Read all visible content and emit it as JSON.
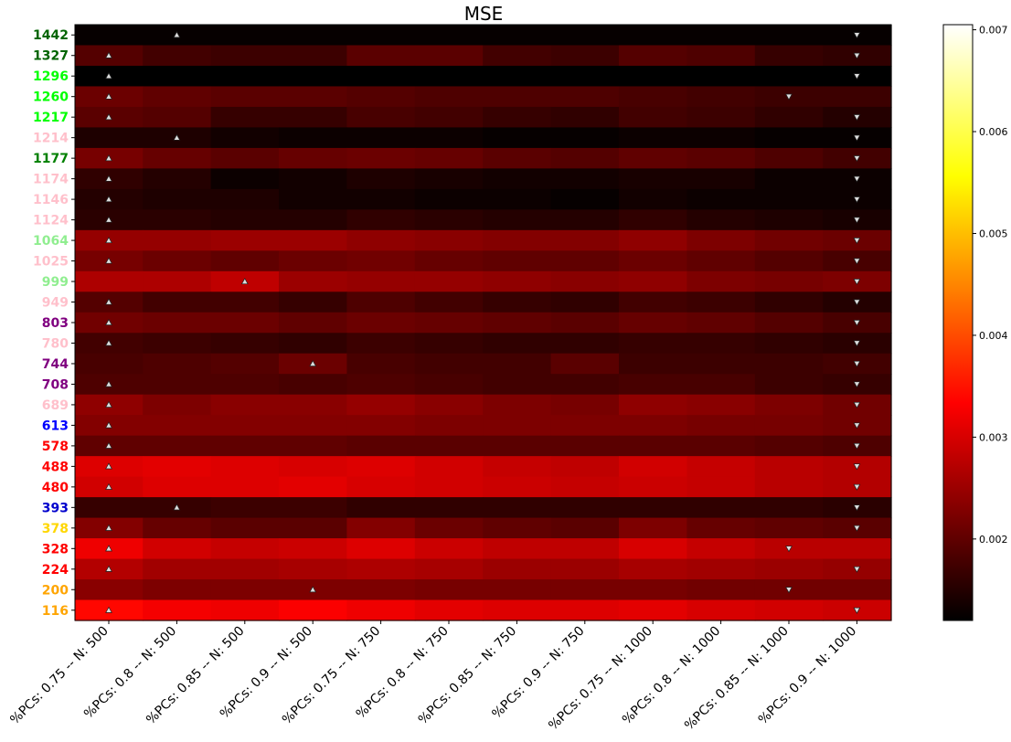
{
  "chart_data": {
    "type": "heatmap",
    "title": "MSE",
    "x_categories": [
      "%PCs: 0.75 -- N: 500",
      "%PCs: 0.8 -- N: 500",
      "%PCs: 0.85 -- N: 500",
      "%PCs: 0.9 -- N: 500",
      "%PCs: 0.75 -- N: 750",
      "%PCs: 0.8 -- N: 750",
      "%PCs: 0.85 -- N: 750",
      "%PCs: 0.9 -- N: 750",
      "%PCs: 0.75 -- N: 1000",
      "%PCs: 0.8 -- N: 1000",
      "%PCs: 0.85 -- N: 1000",
      "%PCs: 0.9 -- N: 1000"
    ],
    "y_categories": [
      {
        "label": "1442",
        "color": "#006400"
      },
      {
        "label": "1327",
        "color": "#006400"
      },
      {
        "label": "1296",
        "color": "#00ff00"
      },
      {
        "label": "1260",
        "color": "#00ff00"
      },
      {
        "label": "1217",
        "color": "#00ff00"
      },
      {
        "label": "1214",
        "color": "#ffc0cb"
      },
      {
        "label": "1177",
        "color": "#008000"
      },
      {
        "label": "1174",
        "color": "#ffc0cb"
      },
      {
        "label": "1146",
        "color": "#ffc0cb"
      },
      {
        "label": "1124",
        "color": "#ffc0cb"
      },
      {
        "label": "1064",
        "color": "#90ee90"
      },
      {
        "label": "1025",
        "color": "#ffc0cb"
      },
      {
        "label": "999",
        "color": "#90ee90"
      },
      {
        "label": "949",
        "color": "#ffc0cb"
      },
      {
        "label": "803",
        "color": "#800080"
      },
      {
        "label": "780",
        "color": "#ffc0cb"
      },
      {
        "label": "744",
        "color": "#800080"
      },
      {
        "label": "708",
        "color": "#800080"
      },
      {
        "label": "689",
        "color": "#ffc0cb"
      },
      {
        "label": "613",
        "color": "#0000ff"
      },
      {
        "label": "578",
        "color": "#ff0000"
      },
      {
        "label": "488",
        "color": "#ff0000"
      },
      {
        "label": "480",
        "color": "#ff0000"
      },
      {
        "label": "393",
        "color": "#0000cd"
      },
      {
        "label": "378",
        "color": "#ffd700"
      },
      {
        "label": "328",
        "color": "#ff0000"
      },
      {
        "label": "224",
        "color": "#ff0000"
      },
      {
        "label": "200",
        "color": "#ffa500"
      },
      {
        "label": "116",
        "color": "#ffa500"
      }
    ],
    "values": [
      [
        0.00125,
        0.00125,
        0.00125,
        0.00125,
        0.00125,
        0.00125,
        0.00125,
        0.00125,
        0.00125,
        0.00125,
        0.00125,
        0.00125
      ],
      [
        0.0019,
        0.00175,
        0.0017,
        0.0017,
        0.00195,
        0.00195,
        0.00175,
        0.0017,
        0.0019,
        0.00185,
        0.00165,
        0.0016
      ],
      [
        0.0012,
        0.0012,
        0.0012,
        0.0012,
        0.0012,
        0.0012,
        0.0012,
        0.0012,
        0.0012,
        0.0012,
        0.0012,
        0.0012
      ],
      [
        0.0021,
        0.002,
        0.00195,
        0.00195,
        0.0019,
        0.00185,
        0.00185,
        0.00185,
        0.0018,
        0.00175,
        0.0017,
        0.0017
      ],
      [
        0.00195,
        0.0019,
        0.00165,
        0.00165,
        0.0018,
        0.00175,
        0.00165,
        0.0016,
        0.00175,
        0.0017,
        0.0016,
        0.0015
      ],
      [
        0.00145,
        0.00145,
        0.00135,
        0.0013,
        0.0013,
        0.0013,
        0.00125,
        0.00125,
        0.0013,
        0.0013,
        0.00125,
        0.00125
      ],
      [
        0.0022,
        0.00205,
        0.00195,
        0.00205,
        0.0021,
        0.00205,
        0.00195,
        0.0019,
        0.002,
        0.00195,
        0.00185,
        0.00175
      ],
      [
        0.0016,
        0.0015,
        0.0013,
        0.00135,
        0.00145,
        0.0014,
        0.00135,
        0.00135,
        0.0014,
        0.0014,
        0.0013,
        0.0013
      ],
      [
        0.0015,
        0.00145,
        0.00145,
        0.00135,
        0.00135,
        0.0013,
        0.0013,
        0.00125,
        0.00135,
        0.0013,
        0.0013,
        0.0013
      ],
      [
        0.00155,
        0.00155,
        0.0015,
        0.0015,
        0.0016,
        0.00155,
        0.0015,
        0.0015,
        0.0016,
        0.0015,
        0.00145,
        0.0014
      ],
      [
        0.00245,
        0.00245,
        0.0025,
        0.0025,
        0.0024,
        0.00235,
        0.0023,
        0.0023,
        0.0024,
        0.00225,
        0.00215,
        0.0021
      ],
      [
        0.0022,
        0.0021,
        0.002,
        0.0021,
        0.00215,
        0.00205,
        0.002,
        0.002,
        0.0021,
        0.002,
        0.0019,
        0.0018
      ],
      [
        0.00265,
        0.00265,
        0.0028,
        0.0025,
        0.00245,
        0.00245,
        0.0024,
        0.00235,
        0.0024,
        0.00225,
        0.0022,
        0.00225
      ],
      [
        0.0019,
        0.00175,
        0.00175,
        0.00165,
        0.00185,
        0.00175,
        0.00165,
        0.0016,
        0.00175,
        0.0017,
        0.0016,
        0.0015
      ],
      [
        0.00215,
        0.0021,
        0.0021,
        0.002,
        0.0021,
        0.00205,
        0.002,
        0.00195,
        0.00205,
        0.002,
        0.0019,
        0.0018
      ],
      [
        0.00175,
        0.0017,
        0.00165,
        0.0016,
        0.0017,
        0.00165,
        0.0016,
        0.0016,
        0.00165,
        0.00165,
        0.0016,
        0.00155
      ],
      [
        0.0018,
        0.00185,
        0.0019,
        0.0021,
        0.0018,
        0.00175,
        0.00175,
        0.00195,
        0.0017,
        0.0017,
        0.0017,
        0.00175
      ],
      [
        0.00185,
        0.00185,
        0.00185,
        0.0018,
        0.00185,
        0.0018,
        0.00175,
        0.00175,
        0.0018,
        0.0018,
        0.0017,
        0.00165
      ],
      [
        0.0024,
        0.00225,
        0.00235,
        0.00235,
        0.00245,
        0.00235,
        0.00225,
        0.0022,
        0.0024,
        0.00235,
        0.00225,
        0.00215
      ],
      [
        0.0023,
        0.0023,
        0.0023,
        0.0023,
        0.0023,
        0.00225,
        0.00225,
        0.00225,
        0.00225,
        0.0022,
        0.0022,
        0.00215
      ],
      [
        0.002,
        0.002,
        0.002,
        0.002,
        0.00195,
        0.00195,
        0.00195,
        0.00195,
        0.00195,
        0.00195,
        0.0019,
        0.00185
      ],
      [
        0.00305,
        0.0031,
        0.00305,
        0.003,
        0.00305,
        0.00295,
        0.00285,
        0.0028,
        0.00295,
        0.00285,
        0.00275,
        0.0027
      ],
      [
        0.00295,
        0.00305,
        0.00305,
        0.0031,
        0.003,
        0.00295,
        0.0029,
        0.00285,
        0.0029,
        0.00285,
        0.00275,
        0.0027
      ],
      [
        0.00165,
        0.00165,
        0.0017,
        0.0017,
        0.0016,
        0.0016,
        0.0016,
        0.0016,
        0.0016,
        0.0016,
        0.0016,
        0.00155
      ],
      [
        0.0023,
        0.00205,
        0.00195,
        0.00195,
        0.0023,
        0.0021,
        0.002,
        0.00195,
        0.00225,
        0.00205,
        0.002,
        0.00195
      ],
      [
        0.0032,
        0.00295,
        0.00285,
        0.0029,
        0.00305,
        0.0029,
        0.0028,
        0.0028,
        0.003,
        0.00285,
        0.00275,
        0.00275
      ],
      [
        0.0027,
        0.00255,
        0.00255,
        0.0026,
        0.00265,
        0.0026,
        0.0025,
        0.0025,
        0.0026,
        0.00255,
        0.0025,
        0.00245
      ],
      [
        0.00235,
        0.00225,
        0.00225,
        0.00225,
        0.00225,
        0.0022,
        0.0022,
        0.0022,
        0.0022,
        0.00215,
        0.00215,
        0.00215
      ],
      [
        0.0034,
        0.00325,
        0.0032,
        0.0033,
        0.0032,
        0.0031,
        0.00305,
        0.00305,
        0.0031,
        0.003,
        0.00295,
        0.0029
      ]
    ],
    "min_markers": [
      [
        0,
        1
      ],
      [
        1,
        0
      ],
      [
        2,
        0
      ],
      [
        3,
        0
      ],
      [
        4,
        0
      ],
      [
        5,
        1
      ],
      [
        6,
        0
      ],
      [
        7,
        0
      ],
      [
        8,
        0
      ],
      [
        9,
        0
      ],
      [
        10,
        0
      ],
      [
        11,
        0
      ],
      [
        12,
        2
      ],
      [
        13,
        0
      ],
      [
        14,
        0
      ],
      [
        15,
        0
      ],
      [
        16,
        3
      ],
      [
        17,
        0
      ],
      [
        18,
        0
      ],
      [
        19,
        0
      ],
      [
        20,
        0
      ],
      [
        21,
        0
      ],
      [
        22,
        0
      ],
      [
        23,
        1
      ],
      [
        24,
        0
      ],
      [
        25,
        0
      ],
      [
        26,
        0
      ],
      [
        27,
        3
      ],
      [
        28,
        0
      ]
    ],
    "max_markers": [
      [
        0,
        11
      ],
      [
        1,
        11
      ],
      [
        2,
        11
      ],
      [
        3,
        10
      ],
      [
        4,
        11
      ],
      [
        5,
        11
      ],
      [
        6,
        11
      ],
      [
        7,
        11
      ],
      [
        8,
        11
      ],
      [
        9,
        11
      ],
      [
        10,
        11
      ],
      [
        11,
        11
      ],
      [
        12,
        11
      ],
      [
        13,
        11
      ],
      [
        14,
        11
      ],
      [
        15,
        11
      ],
      [
        16,
        11
      ],
      [
        17,
        11
      ],
      [
        18,
        11
      ],
      [
        19,
        11
      ],
      [
        20,
        11
      ],
      [
        21,
        11
      ],
      [
        22,
        11
      ],
      [
        23,
        11
      ],
      [
        24,
        11
      ],
      [
        25,
        10
      ],
      [
        26,
        11
      ],
      [
        27,
        10
      ],
      [
        28,
        11
      ]
    ],
    "colormap": "hot",
    "vmin": 0.0012,
    "vmax": 0.00705,
    "colorbar_ticks": [
      "0.002",
      "0.003",
      "0.004",
      "0.005",
      "0.006",
      "0.007"
    ],
    "colorbar_tick_values": [
      0.002,
      0.003,
      0.004,
      0.005,
      0.006,
      0.007
    ],
    "grid": false
  }
}
